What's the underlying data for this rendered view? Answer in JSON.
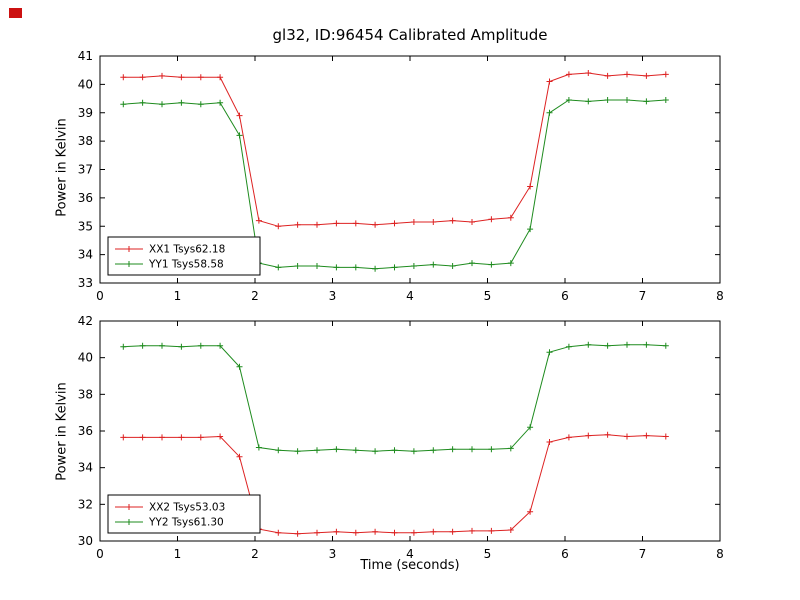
{
  "page": {
    "title": "gl32, ID:96454 Calibrated Amplitude",
    "xlabel": "Time (seconds)"
  },
  "chart_data": [
    {
      "type": "line",
      "name": "top-plot",
      "ylabel": "Power in Kelvin",
      "xlim": [
        0,
        8
      ],
      "ylim": [
        33,
        41
      ],
      "xticks": [
        0,
        1,
        2,
        3,
        4,
        5,
        6,
        7,
        8
      ],
      "yticks": [
        33,
        34,
        35,
        36,
        37,
        38,
        39,
        40,
        41
      ],
      "legend_position": "lower-left",
      "x": [
        0.3,
        0.55,
        0.8,
        1.05,
        1.3,
        1.55,
        1.8,
        2.05,
        2.3,
        2.55,
        2.8,
        3.05,
        3.3,
        3.55,
        3.8,
        4.05,
        4.3,
        4.55,
        4.8,
        5.05,
        5.3,
        5.55,
        5.8,
        6.05,
        6.3,
        6.55,
        6.8,
        7.05,
        7.3
      ],
      "series": [
        {
          "name": "XX1 Tsys62.18",
          "color": "#dd2222",
          "marker": "plus",
          "values": [
            40.25,
            40.25,
            40.3,
            40.25,
            40.25,
            40.25,
            38.9,
            35.2,
            35.0,
            35.05,
            35.05,
            35.1,
            35.1,
            35.05,
            35.1,
            35.15,
            35.15,
            35.2,
            35.15,
            35.25,
            35.3,
            36.4,
            40.1,
            40.35,
            40.4,
            40.3,
            40.35,
            40.3,
            40.35
          ]
        },
        {
          "name": "YY1 Tsys58.58",
          "color": "#1e8b1e",
          "marker": "plus",
          "values": [
            39.3,
            39.35,
            39.3,
            39.35,
            39.3,
            39.35,
            38.2,
            33.7,
            33.55,
            33.6,
            33.6,
            33.55,
            33.55,
            33.5,
            33.55,
            33.6,
            33.65,
            33.6,
            33.7,
            33.65,
            33.7,
            34.9,
            39.0,
            39.45,
            39.4,
            39.45,
            39.45,
            39.4,
            39.45
          ]
        }
      ]
    },
    {
      "type": "line",
      "name": "bottom-plot",
      "ylabel": "Power in Kelvin",
      "xlim": [
        0,
        8
      ],
      "ylim": [
        30,
        42
      ],
      "xticks": [
        0,
        1,
        2,
        3,
        4,
        5,
        6,
        7,
        8
      ],
      "yticks": [
        30,
        32,
        34,
        36,
        38,
        40,
        42
      ],
      "legend_position": "lower-left",
      "x": [
        0.3,
        0.55,
        0.8,
        1.05,
        1.3,
        1.55,
        1.8,
        2.05,
        2.3,
        2.55,
        2.8,
        3.05,
        3.3,
        3.55,
        3.8,
        4.05,
        4.3,
        4.55,
        4.8,
        5.05,
        5.3,
        5.55,
        5.8,
        6.05,
        6.3,
        6.55,
        6.8,
        7.05,
        7.3
      ],
      "series": [
        {
          "name": "XX2 Tsys53.03",
          "color": "#dd2222",
          "marker": "plus",
          "values": [
            35.65,
            35.65,
            35.65,
            35.65,
            35.65,
            35.7,
            34.6,
            30.65,
            30.45,
            30.4,
            30.45,
            30.5,
            30.45,
            30.5,
            30.45,
            30.45,
            30.5,
            30.5,
            30.55,
            30.55,
            30.6,
            31.6,
            35.4,
            35.65,
            35.75,
            35.8,
            35.7,
            35.75,
            35.7
          ]
        },
        {
          "name": "YY2 Tsys61.30",
          "color": "#1e8b1e",
          "marker": "plus",
          "values": [
            40.6,
            40.65,
            40.65,
            40.6,
            40.65,
            40.65,
            39.5,
            35.1,
            34.95,
            34.9,
            34.95,
            35.0,
            34.95,
            34.9,
            34.95,
            34.9,
            34.95,
            35.0,
            35.0,
            35.0,
            35.05,
            36.2,
            40.3,
            40.6,
            40.7,
            40.65,
            40.7,
            40.7,
            40.65
          ]
        }
      ]
    }
  ]
}
